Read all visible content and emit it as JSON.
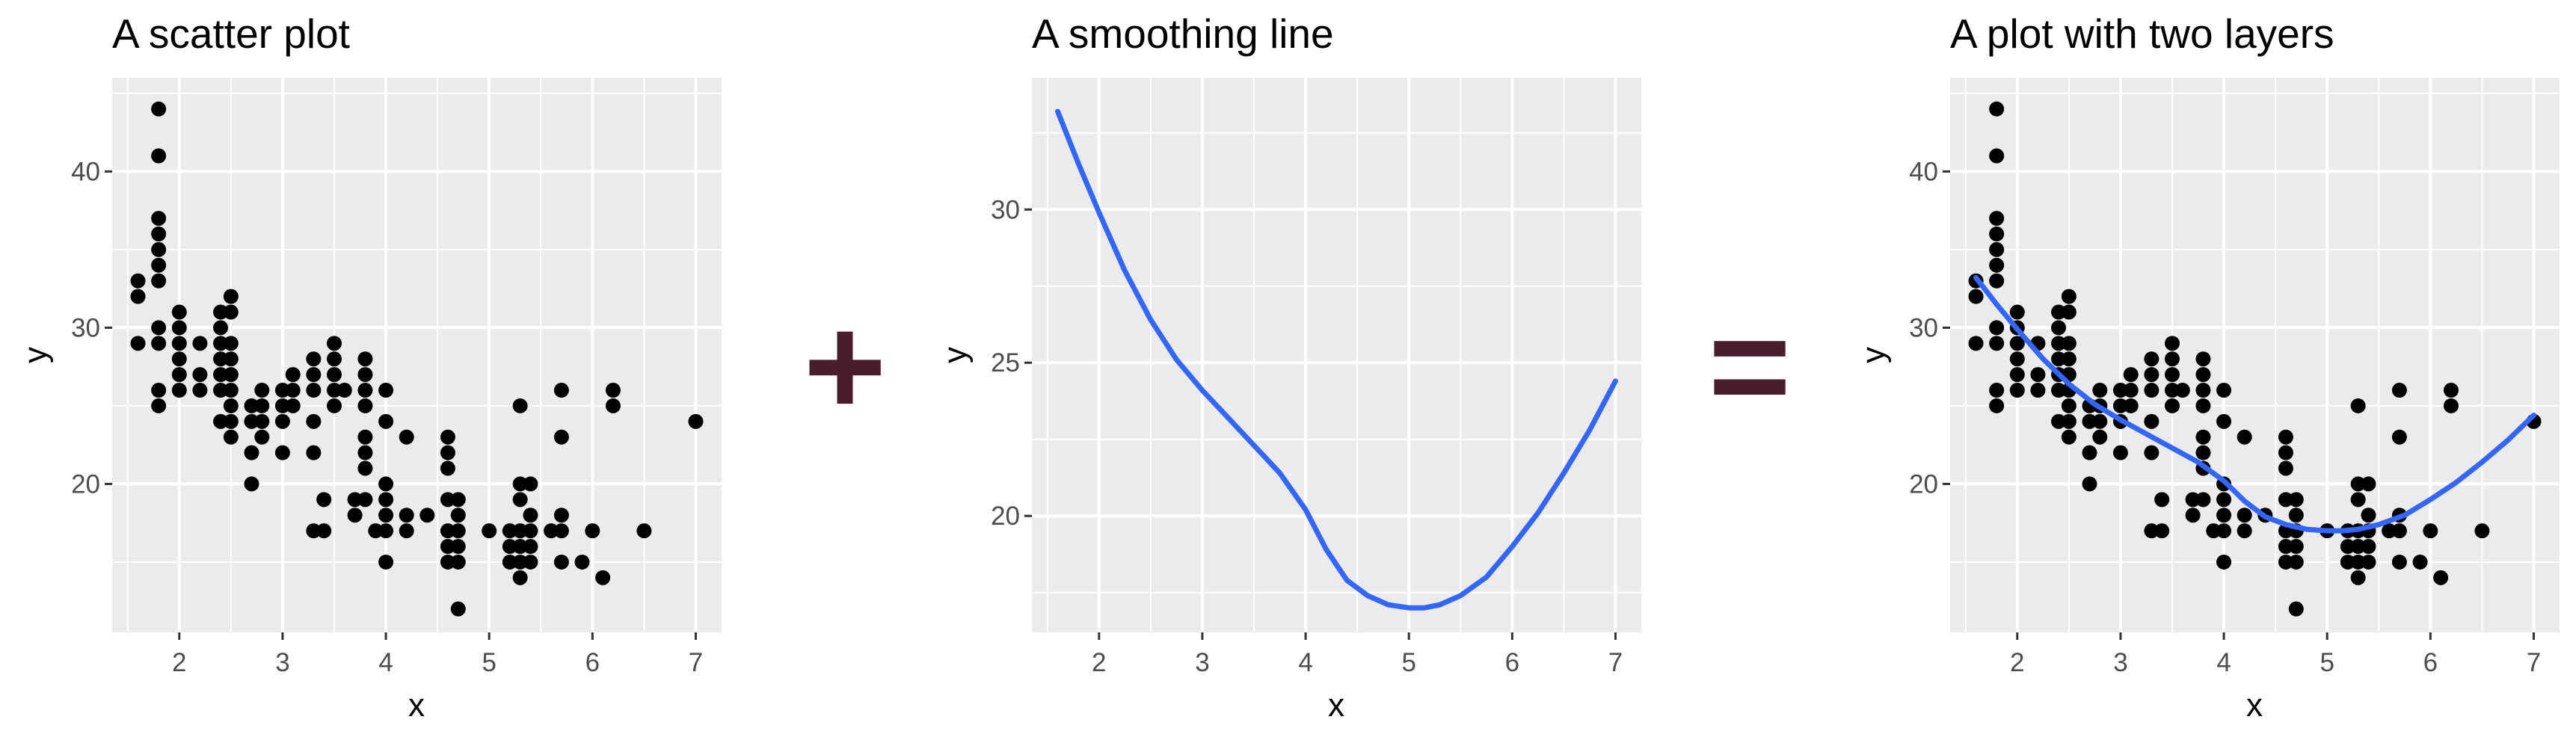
{
  "operators": [
    "+",
    "="
  ],
  "colors": {
    "panel_bg": "#ebebeb",
    "grid_major": "#ffffff",
    "point": "#000000",
    "smooth_line": "#3366ff",
    "operator": "#4a1d2e",
    "tick_label": "#4d4d4d"
  },
  "chart_data": [
    {
      "type": "scatter",
      "title": "A scatter plot",
      "xlabel": "x",
      "ylabel": "y",
      "xlim": [
        1.35,
        7.25
      ],
      "ylim": [
        10.5,
        46
      ],
      "xticks": [
        2,
        3,
        4,
        5,
        6,
        7
      ],
      "yticks": [
        20,
        30,
        40
      ],
      "xtick_labels": [
        "2",
        "3",
        "4",
        "5",
        "6",
        "7"
      ],
      "ytick_labels": [
        "20",
        "30",
        "40"
      ],
      "grid": true,
      "layers": [
        "points"
      ]
    },
    {
      "type": "line",
      "title": "A smoothing line",
      "xlabel": "x",
      "ylabel": "y",
      "xlim": [
        1.35,
        7.25
      ],
      "ylim": [
        16.2,
        34.3
      ],
      "xticks": [
        2,
        3,
        4,
        5,
        6,
        7
      ],
      "yticks": [
        20,
        25,
        30
      ],
      "xtick_labels": [
        "2",
        "3",
        "4",
        "5",
        "6",
        "7"
      ],
      "ytick_labels": [
        "20",
        "25",
        "30"
      ],
      "grid": true,
      "layers": [
        "smooth"
      ]
    },
    {
      "type": "scatter",
      "title": "A plot with two layers",
      "xlabel": "x",
      "ylabel": "y",
      "xlim": [
        1.35,
        7.25
      ],
      "ylim": [
        10.5,
        46
      ],
      "xticks": [
        2,
        3,
        4,
        5,
        6,
        7
      ],
      "yticks": [
        20,
        30,
        40
      ],
      "xtick_labels": [
        "2",
        "3",
        "4",
        "5",
        "6",
        "7"
      ],
      "ytick_labels": [
        "20",
        "30",
        "40"
      ],
      "grid": true,
      "layers": [
        "points",
        "smooth"
      ]
    }
  ],
  "points": [
    [
      1.6,
      33
    ],
    [
      1.6,
      32
    ],
    [
      1.6,
      29
    ],
    [
      1.8,
      44
    ],
    [
      1.8,
      41
    ],
    [
      1.8,
      37
    ],
    [
      1.8,
      36
    ],
    [
      1.8,
      35
    ],
    [
      1.8,
      34
    ],
    [
      1.8,
      33
    ],
    [
      1.8,
      30
    ],
    [
      1.8,
      29
    ],
    [
      1.8,
      26
    ],
    [
      1.8,
      25
    ],
    [
      2,
      31
    ],
    [
      2,
      30
    ],
    [
      2,
      29
    ],
    [
      2,
      28
    ],
    [
      2,
      27
    ],
    [
      2,
      26
    ],
    [
      2.2,
      29
    ],
    [
      2.2,
      27
    ],
    [
      2.2,
      26
    ],
    [
      2.4,
      31
    ],
    [
      2.4,
      30
    ],
    [
      2.4,
      29
    ],
    [
      2.4,
      28
    ],
    [
      2.4,
      27
    ],
    [
      2.4,
      26
    ],
    [
      2.4,
      24
    ],
    [
      2.5,
      32
    ],
    [
      2.5,
      31
    ],
    [
      2.5,
      29
    ],
    [
      2.5,
      28
    ],
    [
      2.5,
      27
    ],
    [
      2.5,
      26
    ],
    [
      2.5,
      25
    ],
    [
      2.5,
      24
    ],
    [
      2.5,
      23
    ],
    [
      2.7,
      25
    ],
    [
      2.7,
      24
    ],
    [
      2.7,
      22
    ],
    [
      2.7,
      20
    ],
    [
      2.8,
      26
    ],
    [
      2.8,
      25
    ],
    [
      2.8,
      24
    ],
    [
      2.8,
      23
    ],
    [
      3,
      26
    ],
    [
      3,
      25
    ],
    [
      3,
      24
    ],
    [
      3,
      22
    ],
    [
      3.1,
      27
    ],
    [
      3.1,
      26
    ],
    [
      3.1,
      25
    ],
    [
      3.3,
      28
    ],
    [
      3.3,
      27
    ],
    [
      3.3,
      26
    ],
    [
      3.3,
      24
    ],
    [
      3.3,
      22
    ],
    [
      3.3,
      17
    ],
    [
      3.4,
      19
    ],
    [
      3.4,
      17
    ],
    [
      3.5,
      29
    ],
    [
      3.5,
      28
    ],
    [
      3.5,
      27
    ],
    [
      3.5,
      26
    ],
    [
      3.5,
      25
    ],
    [
      3.6,
      26
    ],
    [
      3.7,
      19
    ],
    [
      3.7,
      18
    ],
    [
      3.8,
      28
    ],
    [
      3.8,
      27
    ],
    [
      3.8,
      26
    ],
    [
      3.8,
      25
    ],
    [
      3.8,
      23
    ],
    [
      3.8,
      22
    ],
    [
      3.8,
      21
    ],
    [
      3.8,
      19
    ],
    [
      3.9,
      17
    ],
    [
      4,
      26
    ],
    [
      4,
      24
    ],
    [
      4,
      20
    ],
    [
      4,
      19
    ],
    [
      4,
      18
    ],
    [
      4,
      17
    ],
    [
      4,
      15
    ],
    [
      4.2,
      23
    ],
    [
      4.2,
      18
    ],
    [
      4.2,
      17
    ],
    [
      4.4,
      18
    ],
    [
      4.6,
      23
    ],
    [
      4.6,
      22
    ],
    [
      4.6,
      21
    ],
    [
      4.6,
      19
    ],
    [
      4.6,
      17
    ],
    [
      4.6,
      16
    ],
    [
      4.6,
      15
    ],
    [
      4.7,
      19
    ],
    [
      4.7,
      18
    ],
    [
      4.7,
      17
    ],
    [
      4.7,
      16
    ],
    [
      4.7,
      15
    ],
    [
      4.7,
      12
    ],
    [
      5,
      17
    ],
    [
      5.2,
      17
    ],
    [
      5.2,
      16
    ],
    [
      5.2,
      15
    ],
    [
      5.3,
      25
    ],
    [
      5.3,
      20
    ],
    [
      5.3,
      19
    ],
    [
      5.3,
      17
    ],
    [
      5.3,
      16
    ],
    [
      5.3,
      15
    ],
    [
      5.3,
      14
    ],
    [
      5.4,
      20
    ],
    [
      5.4,
      18
    ],
    [
      5.4,
      17
    ],
    [
      5.4,
      16
    ],
    [
      5.4,
      15
    ],
    [
      5.6,
      17
    ],
    [
      5.7,
      26
    ],
    [
      5.7,
      23
    ],
    [
      5.7,
      18
    ],
    [
      5.7,
      17
    ],
    [
      5.7,
      15
    ],
    [
      5.9,
      15
    ],
    [
      6,
      17
    ],
    [
      6.1,
      14
    ],
    [
      6.2,
      26
    ],
    [
      6.2,
      25
    ],
    [
      6.5,
      17
    ],
    [
      7,
      24
    ]
  ],
  "smooth": [
    [
      1.6,
      33.2
    ],
    [
      1.8,
      31.5
    ],
    [
      2.0,
      29.9
    ],
    [
      2.25,
      28.0
    ],
    [
      2.5,
      26.4
    ],
    [
      2.75,
      25.1
    ],
    [
      3.0,
      24.1
    ],
    [
      3.25,
      23.2
    ],
    [
      3.5,
      22.3
    ],
    [
      3.75,
      21.4
    ],
    [
      4.0,
      20.2
    ],
    [
      4.2,
      18.9
    ],
    [
      4.4,
      17.9
    ],
    [
      4.6,
      17.4
    ],
    [
      4.8,
      17.1
    ],
    [
      5.0,
      17.0
    ],
    [
      5.15,
      17.0
    ],
    [
      5.3,
      17.1
    ],
    [
      5.5,
      17.4
    ],
    [
      5.75,
      18.0
    ],
    [
      6.0,
      19.0
    ],
    [
      6.25,
      20.1
    ],
    [
      6.5,
      21.4
    ],
    [
      6.75,
      22.8
    ],
    [
      7.0,
      24.4
    ]
  ]
}
